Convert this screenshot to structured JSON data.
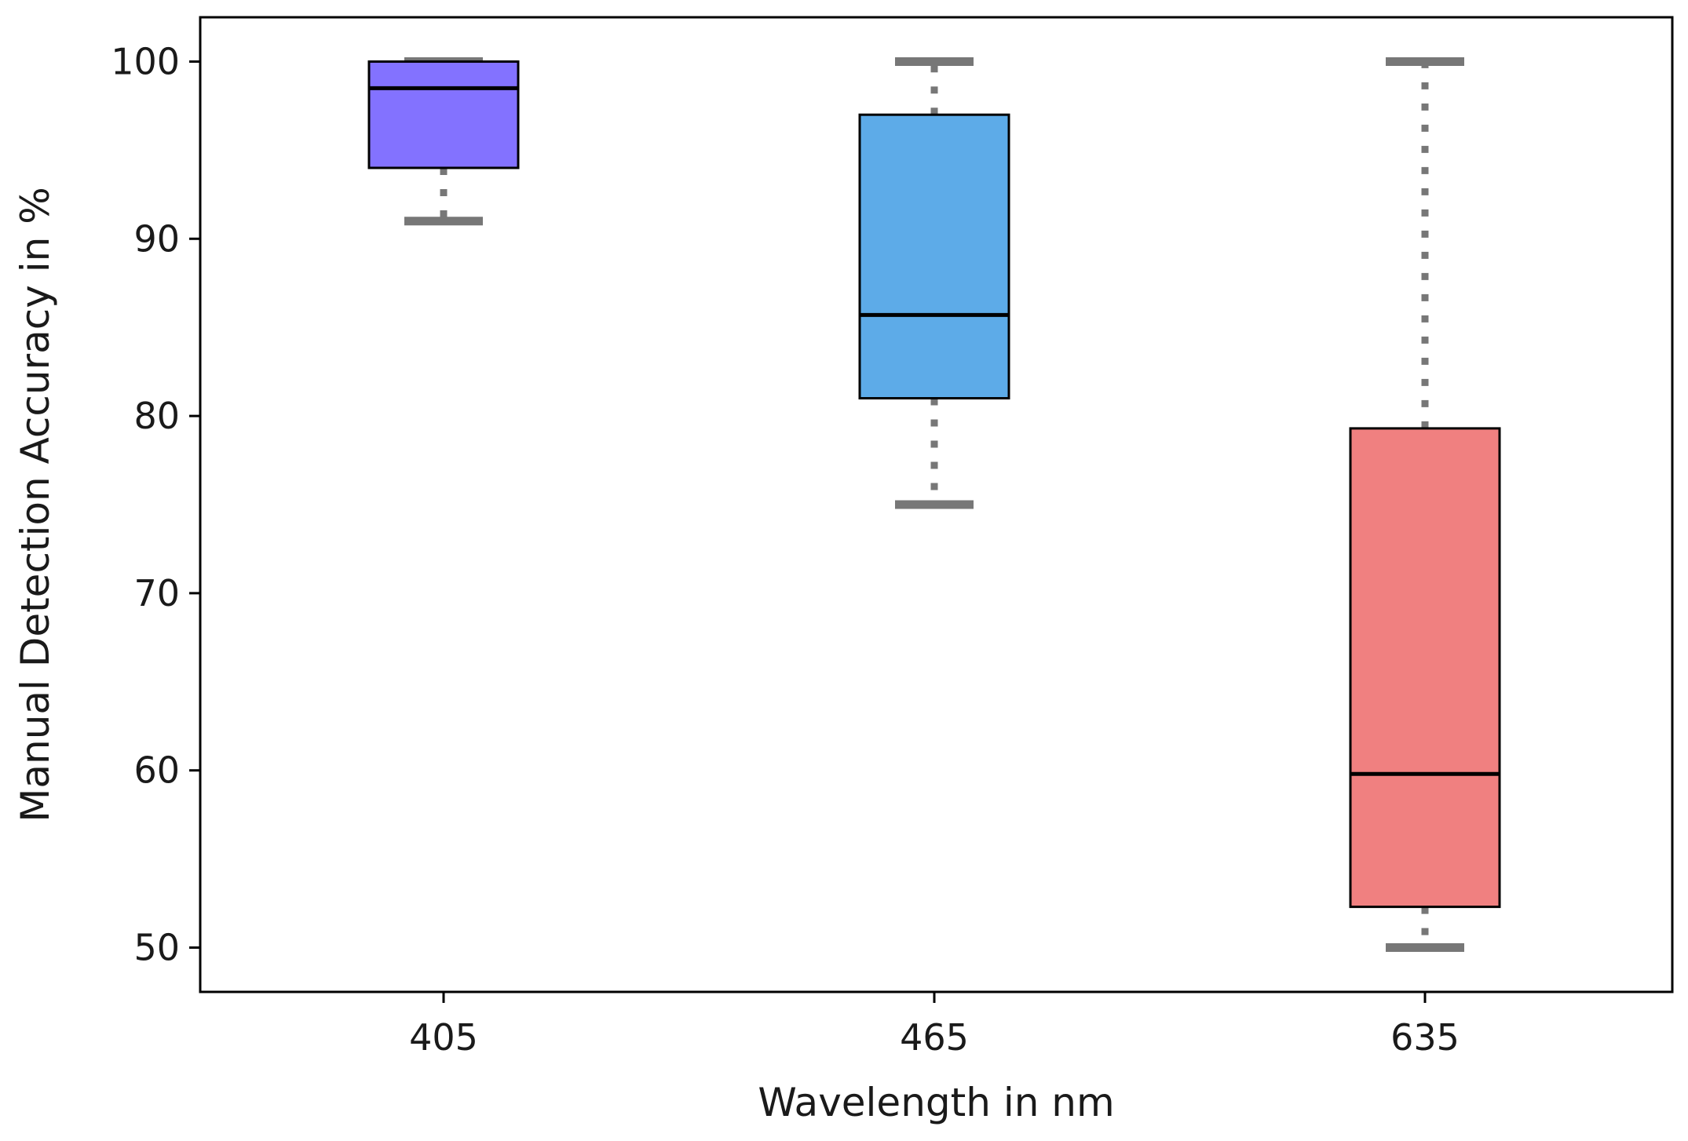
{
  "chart_data": {
    "type": "box",
    "title": "",
    "xlabel": "Wavelength in nm",
    "ylabel": "Manual Detection Accuracy in %",
    "ylim": [
      47.5,
      102.5
    ],
    "yticks": [
      50,
      60,
      70,
      80,
      90,
      100
    ],
    "grid": false,
    "categories": [
      "405",
      "465",
      "635"
    ],
    "boxes": [
      {
        "name": "405",
        "whisker_low": 91,
        "q1": 94,
        "median": 98.5,
        "q3": 100,
        "whisker_high": 100,
        "color": "#8372FF"
      },
      {
        "name": "465",
        "whisker_low": 75,
        "q1": 81,
        "median": 85.7,
        "q3": 97,
        "whisker_high": 100,
        "color": "#5DABE8"
      },
      {
        "name": "635",
        "whisker_low": 50,
        "q1": 52.3,
        "median": 59.8,
        "q3": 79.3,
        "whisker_high": 100,
        "color": "#F08080"
      }
    ],
    "whisker_color": "#777777",
    "median_color": "#000000"
  }
}
